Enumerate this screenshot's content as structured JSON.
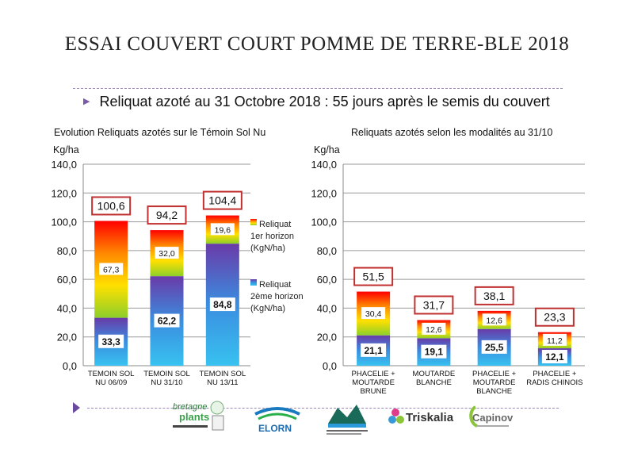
{
  "title": "ESSAI COUVERT COURT POMME DE TERRE-BLE 2018",
  "subtitle": "Reliquat azoté au 31 Octobre 2018 : 55 jours après le semis du couvert",
  "colors": {
    "top_grad": [
      "#ff0000",
      "#ff8800",
      "#ffe000",
      "#8ccf2a"
    ],
    "bottom_grad": [
      "#6a3aa8",
      "#3a8ee0",
      "#38c2f0"
    ],
    "total_box": "#c03030",
    "nav_arrow": "#6a4aa0"
  },
  "legend": {
    "top_label": "Reliquat 1er horizon (KgN/ha)",
    "bottom_label": "Reliquat 2ème horizon (KgN/ha)"
  },
  "chart_data": [
    {
      "type": "bar",
      "stacked": true,
      "title": "Evolution Reliquats azotés sur le Témoin Sol  Nu",
      "ylabel": "Kg/ha",
      "ylim": [
        0,
        140
      ],
      "yticks": [
        "0,0",
        "20,0",
        "40,0",
        "60,0",
        "80,0",
        "100,0",
        "120,0",
        "140,0"
      ],
      "categories": [
        "TEMOIN SOL NU   06/09",
        "TEMOIN SOL NU   31/10",
        "TEMOIN SOL NU   13/11"
      ],
      "category_lines": [
        [
          "TEMOIN SOL",
          "NU   06/09"
        ],
        [
          "TEMOIN SOL",
          "NU   31/10"
        ],
        [
          "TEMOIN SOL",
          "NU   13/11"
        ]
      ],
      "series": [
        {
          "name": "Reliquat 2ème horizon (KgN/ha)",
          "values": [
            33.3,
            62.2,
            84.8
          ],
          "labels": [
            "33,3",
            "62,2",
            "84,8"
          ]
        },
        {
          "name": "Reliquat 1er horizon (KgN/ha)",
          "values": [
            67.3,
            32.0,
            19.6
          ],
          "labels": [
            "67,3",
            "32,0",
            "19,6"
          ]
        }
      ],
      "totals": [
        "100,6",
        "94,2",
        "104,4"
      ],
      "legend": "right",
      "grid": "horizontal"
    },
    {
      "type": "bar",
      "stacked": true,
      "title": "Reliquats azotés selon les modalités au 31/10",
      "ylabel": "Kg/ha",
      "ylim": [
        0,
        140
      ],
      "yticks": [
        "0,0",
        "20,0",
        "40,0",
        "60,0",
        "80,0",
        "100,0",
        "120,0",
        "140,0"
      ],
      "categories": [
        "PHACELIE + MOUTARDE BRUNE",
        "MOUTARDE BLANCHE",
        "PHACELIE + MOUTARDE BLANCHE",
        "PHACELIE + RADIS CHINOIS"
      ],
      "category_lines": [
        [
          "PHACELIE +",
          "MOUTARDE",
          "BRUNE"
        ],
        [
          "MOUTARDE",
          "BLANCHE"
        ],
        [
          "PHACELIE +",
          "MOUTARDE",
          "BLANCHE"
        ],
        [
          "PHACELIE +",
          "RADIS CHINOIS"
        ]
      ],
      "series": [
        {
          "name": "Reliquat 2ème horizon (KgN/ha)",
          "values": [
            21.1,
            19.1,
            25.5,
            12.1
          ],
          "labels": [
            "21,1",
            "19,1",
            "25,5",
            "12,1"
          ]
        },
        {
          "name": "Reliquat 1er horizon (KgN/ha)",
          "values": [
            30.4,
            12.6,
            12.6,
            11.2
          ],
          "labels": [
            "30,4",
            "12,6",
            "12,6",
            "11,2"
          ]
        }
      ],
      "totals": [
        "51,5",
        "31,7",
        "38,1",
        "23,3"
      ],
      "grid": "horizontal"
    }
  ],
  "logos": [
    {
      "name": "bretagne-plants-logo",
      "text": "bretagne plants"
    },
    {
      "name": "elorn-logo",
      "text": "ELORN"
    },
    {
      "name": "syndicat-elorn-logo",
      "text": ""
    },
    {
      "name": "triskalia-logo",
      "text": "Triskalia"
    },
    {
      "name": "capinov-logo",
      "text": "Capinov"
    }
  ]
}
